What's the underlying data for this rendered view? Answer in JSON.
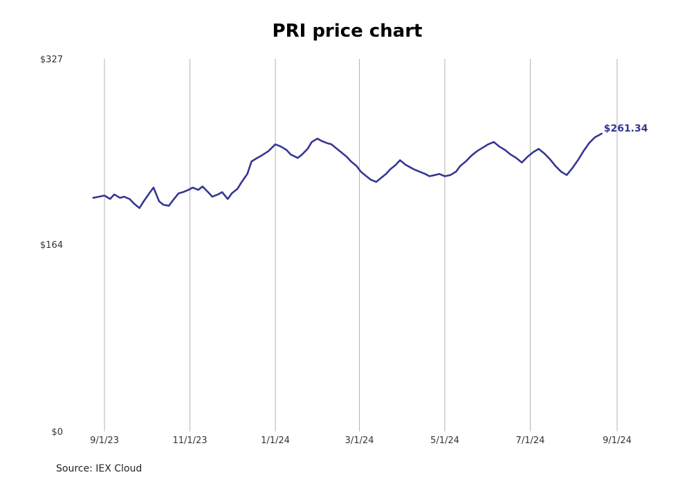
{
  "source_note": "Source: IEX Cloud",
  "chart_data": {
    "type": "line",
    "title": "PRI price chart",
    "xlabel": "",
    "ylabel": "",
    "ylim": [
      0,
      327
    ],
    "y_ticks": [
      {
        "value": 0,
        "label": "$0"
      },
      {
        "value": 164,
        "label": "$164"
      },
      {
        "value": 327,
        "label": "$327"
      }
    ],
    "x_ticks": [
      {
        "date": "2023-09-01",
        "label": "9/1/23"
      },
      {
        "date": "2023-11-01",
        "label": "11/1/23"
      },
      {
        "date": "2024-01-01",
        "label": "1/1/24"
      },
      {
        "date": "2024-03-01",
        "label": "3/1/24"
      },
      {
        "date": "2024-05-01",
        "label": "5/1/24"
      },
      {
        "date": "2024-07-01",
        "label": "7/1/24"
      },
      {
        "date": "2024-09-01",
        "label": "9/1/24"
      }
    ],
    "grid": "vertical",
    "line_color": "#353594",
    "last_value_label": "$261.34",
    "series": [
      {
        "x": [
          "2023-08-24",
          "2023-08-28",
          "2023-09-01",
          "2023-09-05",
          "2023-09-08",
          "2023-09-12",
          "2023-09-15",
          "2023-09-19",
          "2023-09-22",
          "2023-09-26",
          "2023-09-29",
          "2023-10-03",
          "2023-10-06",
          "2023-10-10",
          "2023-10-13",
          "2023-10-17",
          "2023-10-20",
          "2023-10-24",
          "2023-10-27",
          "2023-10-31",
          "2023-11-03",
          "2023-11-07",
          "2023-11-10",
          "2023-11-14",
          "2023-11-17",
          "2023-11-21",
          "2023-11-24",
          "2023-11-28",
          "2023-12-01",
          "2023-12-05",
          "2023-12-08",
          "2023-12-12",
          "2023-12-15",
          "2023-12-19",
          "2023-12-22",
          "2023-12-27",
          "2024-01-01",
          "2024-01-05",
          "2024-01-09",
          "2024-01-12",
          "2024-01-17",
          "2024-01-20",
          "2024-01-24",
          "2024-01-27",
          "2024-01-31",
          "2024-02-03",
          "2024-02-07",
          "2024-02-10",
          "2024-02-14",
          "2024-02-17",
          "2024-02-21",
          "2024-02-24",
          "2024-02-28",
          "2024-03-02",
          "2024-03-06",
          "2024-03-09",
          "2024-03-13",
          "2024-03-16",
          "2024-03-20",
          "2024-03-23",
          "2024-03-27",
          "2024-03-30",
          "2024-04-03",
          "2024-04-06",
          "2024-04-09",
          "2024-04-13",
          "2024-04-17",
          "2024-04-20",
          "2024-04-24",
          "2024-04-27",
          "2024-05-01",
          "2024-05-05",
          "2024-05-09",
          "2024-05-12",
          "2024-05-16",
          "2024-05-20",
          "2024-05-24",
          "2024-05-28",
          "2024-06-01",
          "2024-06-05",
          "2024-06-09",
          "2024-06-13",
          "2024-06-17",
          "2024-06-21",
          "2024-06-25",
          "2024-06-29",
          "2024-07-03",
          "2024-07-07",
          "2024-07-11",
          "2024-07-15",
          "2024-07-19",
          "2024-07-23",
          "2024-07-27",
          "2024-07-31",
          "2024-08-04",
          "2024-08-08",
          "2024-08-12",
          "2024-08-16",
          "2024-08-21"
        ],
        "values": [
          205,
          206,
          207,
          204,
          208,
          205,
          206,
          204,
          200,
          196,
          202,
          209,
          214,
          202,
          199,
          198,
          203,
          209,
          210,
          212,
          214,
          212,
          215,
          210,
          206,
          208,
          210,
          204,
          209,
          213,
          219,
          226,
          237,
          240,
          242,
          246,
          252,
          250,
          247,
          243,
          240,
          243,
          248,
          254,
          257,
          255,
          253,
          252,
          248,
          245,
          241,
          237,
          233,
          228,
          224,
          221,
          219,
          222,
          226,
          230,
          234,
          238,
          234,
          232,
          230,
          228,
          226,
          224,
          225,
          226,
          224,
          225,
          228,
          233,
          237,
          242,
          246,
          249,
          252,
          254,
          250,
          247,
          243,
          240,
          236,
          241,
          245,
          248,
          244,
          239,
          233,
          228,
          225,
          231,
          238,
          246,
          253,
          258,
          261.34
        ]
      }
    ]
  }
}
